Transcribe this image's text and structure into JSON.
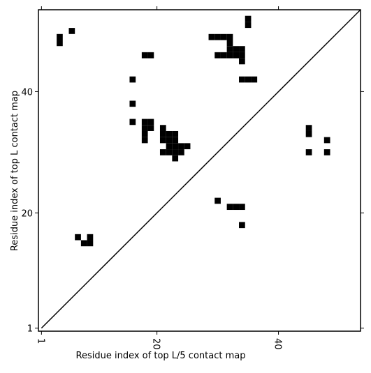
{
  "chart_data": {
    "type": "scatter",
    "marker": "square",
    "color": "#000000",
    "xlabel": "Residue index of top L/5 contact map",
    "ylabel": "Residue index of top L contact map",
    "xlim": [
      0.5,
      53.5
    ],
    "ylim": [
      0.5,
      53.5
    ],
    "xticks": [
      1,
      20,
      40
    ],
    "yticks": [
      1,
      20,
      40
    ],
    "x": [
      4,
      4,
      6,
      35,
      35,
      29,
      30,
      31,
      32,
      32,
      32,
      33,
      34,
      30,
      31,
      32,
      33,
      34,
      34,
      18,
      19,
      16,
      34,
      35,
      36,
      16,
      16,
      18,
      19,
      18,
      19,
      18,
      18,
      21,
      21,
      22,
      23,
      21,
      22,
      23,
      22,
      23,
      24,
      25,
      21,
      22,
      23,
      24,
      23,
      7,
      9,
      8,
      9,
      45,
      45,
      48,
      45,
      48,
      30,
      32,
      33,
      34,
      34
    ],
    "y": [
      49,
      48,
      50,
      52,
      51,
      49,
      49,
      49,
      49,
      48,
      47,
      47,
      47,
      46,
      46,
      46,
      46,
      46,
      45,
      46,
      46,
      42,
      42,
      42,
      42,
      38,
      35,
      35,
      35,
      34,
      34,
      33,
      32,
      34,
      33,
      33,
      33,
      32,
      32,
      32,
      31,
      31,
      31,
      31,
      30,
      30,
      30,
      30,
      29,
      16,
      16,
      15,
      15,
      34,
      33,
      32,
      30,
      30,
      22,
      21,
      21,
      21,
      18
    ]
  }
}
